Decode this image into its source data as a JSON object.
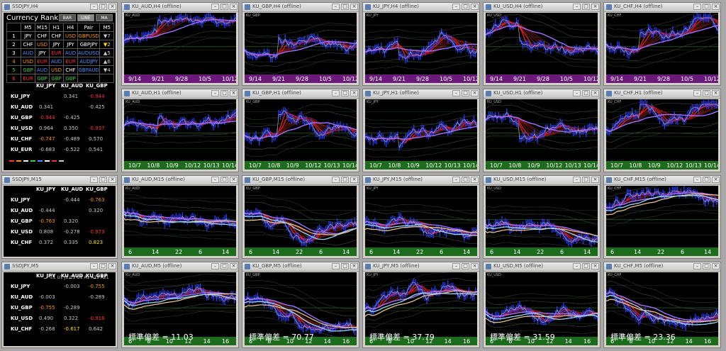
{
  "panels": [
    {
      "title": "SSDJPY,H4",
      "ranking": {
        "heading": "Currency Rank",
        "buttons": [
          "BAR",
          "LINE",
          "MA"
        ],
        "headers": [
          "",
          "M5",
          "M15",
          "H1",
          "H4",
          "Pair",
          "M5"
        ],
        "rows": [
          [
            {
              "t": "1",
              "c": "#fff"
            },
            {
              "t": "JPY",
              "c": "#fff"
            },
            {
              "t": "CHF",
              "c": "#fff"
            },
            {
              "t": "CHF",
              "c": "#fff"
            },
            {
              "t": "USD",
              "c": "#ff9900"
            },
            {
              "t": "GBPUSD",
              "c": "#ff9900"
            },
            {
              "t": "▼7",
              "c": "#ccc"
            }
          ],
          [
            {
              "t": "2",
              "c": "#fff"
            },
            {
              "t": "CHF",
              "c": "#fff"
            },
            {
              "t": "USD",
              "c": "#ff9900"
            },
            {
              "t": "JPY",
              "c": "#fff"
            },
            {
              "t": "JPY",
              "c": "#fff"
            },
            {
              "t": "GBPJPY",
              "c": "#fff"
            },
            {
              "t": "▼2",
              "c": "#ffe000"
            }
          ],
          [
            {
              "t": "3",
              "c": "#fff"
            },
            {
              "t": "AUD",
              "c": "#4a90ff"
            },
            {
              "t": "JPY",
              "c": "#fff"
            },
            {
              "t": "EUR",
              "c": "#ff3030"
            },
            {
              "t": "AUD",
              "c": "#4a90ff"
            },
            {
              "t": "AUDUSD",
              "c": "#4a90ff"
            },
            {
              "t": "▲5",
              "c": "#ccc"
            }
          ],
          [
            {
              "t": "4",
              "c": "#ff9900"
            },
            {
              "t": "USD",
              "c": "#ff9900"
            },
            {
              "t": "EUR",
              "c": "#ff3030"
            },
            {
              "t": "AUD",
              "c": "#4a90ff"
            },
            {
              "t": "EUR",
              "c": "#ff3030"
            },
            {
              "t": "AUDJPY",
              "c": "#4a90ff"
            },
            {
              "t": "▲6",
              "c": "#ccc"
            }
          ],
          [
            {
              "t": "5",
              "c": "#3ad03a"
            },
            {
              "t": "GBP",
              "c": "#3ad03a"
            },
            {
              "t": "AUD",
              "c": "#4a90ff"
            },
            {
              "t": "USD",
              "c": "#ff9900"
            },
            {
              "t": "CHF",
              "c": "#fff"
            },
            {
              "t": "GBPAUD",
              "c": "#4a90ff"
            },
            {
              "t": "▼4",
              "c": "#ccc"
            }
          ],
          [
            {
              "t": "6",
              "c": "#ff3030"
            },
            {
              "t": "EUR",
              "c": "#ff3030"
            },
            {
              "t": "GBP",
              "c": "#3ad03a"
            },
            {
              "t": "GBP",
              "c": "#3ad03a"
            },
            {
              "t": "GBP",
              "c": "#3ad03a"
            },
            {
              "t": "",
              "c": "#fff"
            },
            {
              "t": "",
              "c": "#fff"
            }
          ]
        ]
      },
      "matrix": {
        "cols": [
          "KU_JPY",
          "KU_AUD",
          "KU_GBP"
        ],
        "rows": [
          {
            "l": "KU_JPY",
            "v": [
              {
                "t": ""
              },
              {
                "t": "0.341",
                "c": "g"
              },
              {
                "t": "-0.944",
                "c": "r"
              }
            ]
          },
          {
            "l": "KU_AUD",
            "v": [
              {
                "t": "0.341",
                "c": "g"
              },
              {
                "t": ""
              },
              {
                "t": "-0.425",
                "c": "g"
              }
            ]
          },
          {
            "l": "KU_GBP",
            "v": [
              {
                "t": "-0.944",
                "c": "r"
              },
              {
                "t": "-0.425",
                "c": "g"
              },
              {
                "t": ""
              }
            ]
          },
          {
            "l": "KU_USD",
            "v": [
              {
                "t": "0.964",
                "c": "g"
              },
              {
                "t": "0.350",
                "c": "g"
              },
              {
                "t": "-0.937",
                "c": "r"
              }
            ]
          },
          {
            "l": "KU_CHF",
            "v": [
              {
                "t": "-0.747",
                "c": "o"
              },
              {
                "t": "-0.489",
                "c": "g"
              },
              {
                "t": "0.570",
                "c": "g"
              }
            ]
          },
          {
            "l": "KU_EUR",
            "v": [
              {
                "t": "-0.683",
                "c": "g"
              },
              {
                "t": "-0.522",
                "c": "g"
              },
              {
                "t": "0.541",
                "c": "g"
              }
            ]
          }
        ]
      }
    },
    {
      "title": "SSDJPY,M15",
      "matrix": {
        "cols": [
          "KU_JPY",
          "KU_AUD",
          "KU_GBP"
        ],
        "rows": [
          {
            "l": "KU_JPY",
            "v": [
              {
                "t": ""
              },
              {
                "t": "-0.444",
                "c": "g"
              },
              {
                "t": "-0.763",
                "c": "o"
              }
            ]
          },
          {
            "l": "KU_AUD",
            "v": [
              {
                "t": "-0.444",
                "c": "g"
              },
              {
                "t": ""
              },
              {
                "t": "0.320",
                "c": "g"
              }
            ]
          },
          {
            "l": "KU_GBP",
            "v": [
              {
                "t": "-0.763",
                "c": "o"
              },
              {
                "t": "0.320",
                "c": "g"
              },
              {
                "t": ""
              }
            ]
          },
          {
            "l": "KU_USD",
            "v": [
              {
                "t": "0.808",
                "c": "g"
              },
              {
                "t": "-0.278",
                "c": "g"
              },
              {
                "t": "-0.973",
                "c": "r"
              }
            ]
          },
          {
            "l": "KU_CHF",
            "v": [
              {
                "t": "0.372",
                "c": "g"
              },
              {
                "t": "0.335",
                "c": "g"
              },
              {
                "t": "0.823",
                "c": "y"
              }
            ]
          }
        ]
      }
    },
    {
      "title": "SSDJPY,M5",
      "extra": "E1 U1 J1 C1 G1 A1 A11 A21",
      "matrix": {
        "cols": [
          "KU_JPY",
          "KU_AUD",
          "KU_GBP"
        ],
        "rows": [
          {
            "l": "KU_JPY",
            "v": [
              {
                "t": ""
              },
              {
                "t": "-0.003",
                "c": "g"
              },
              {
                "t": "-0.755",
                "c": "o"
              }
            ]
          },
          {
            "l": "KU_AUD",
            "v": [
              {
                "t": "-0.003",
                "c": "g"
              },
              {
                "t": ""
              },
              {
                "t": "-0.289",
                "c": "g"
              }
            ]
          },
          {
            "l": "KU_GBP",
            "v": [
              {
                "t": "-0.755",
                "c": "o"
              },
              {
                "t": "-0.289",
                "c": "g"
              },
              {
                "t": ""
              }
            ]
          },
          {
            "l": "KU_USD",
            "v": [
              {
                "t": "0.490",
                "c": "g"
              },
              {
                "t": "0.322",
                "c": "g"
              },
              {
                "t": "-0.916",
                "c": "r"
              }
            ]
          },
          {
            "l": "KU_CHF",
            "v": [
              {
                "t": "-0.268",
                "c": "g"
              },
              {
                "t": "-0.617",
                "c": "y"
              },
              {
                "t": "0.642",
                "c": "g"
              }
            ]
          }
        ]
      }
    }
  ],
  "symbols": [
    "KU_AUD",
    "KU_GBP",
    "KU_JPY",
    "KU_USD",
    "KU_CHF"
  ],
  "rows": [
    {
      "tf": "H4",
      "xlabels": [
        "9/14",
        "9/21",
        "9/28",
        "10/5",
        "10/12"
      ],
      "footer": "#6a1b7a"
    },
    {
      "tf": "H1",
      "xlabels": [
        "10/7",
        "10/8",
        "10/9",
        "10/12",
        "10/13",
        "10/14"
      ],
      "footer": "#1d6b1d"
    },
    {
      "tf": "M15",
      "xlabels": [
        "6",
        "14",
        "22",
        "6",
        "14"
      ],
      "footer": "#1d6b1d"
    },
    {
      "tf": "M5",
      "xlabels": [
        "6",
        "8",
        "10",
        "12",
        "14",
        "16"
      ],
      "footer": "#1d6b1d",
      "stdlabel": "標準偏差 =",
      "std": [
        "11.03",
        "70.77",
        "37.79",
        "31.59",
        "23.36"
      ]
    }
  ]
}
